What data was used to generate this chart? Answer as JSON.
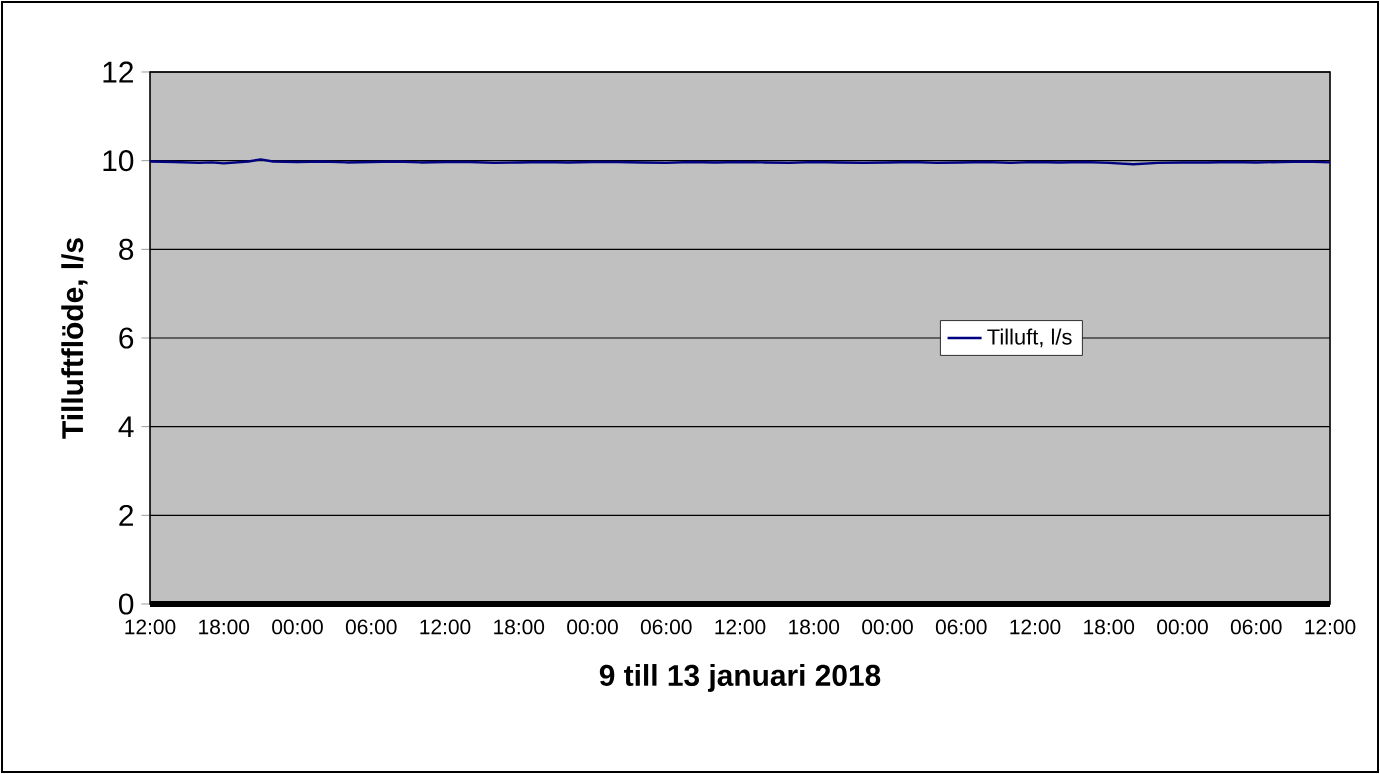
{
  "chart_data": {
    "type": "line",
    "xlabel": "9 till 13 januari 2018",
    "ylabel": "Tilluftflöde, l/s",
    "xlim": [
      "2018-01-09T12:00",
      "2018-01-13T12:00"
    ],
    "ylim": [
      0,
      12
    ],
    "yticks": [
      0,
      2,
      4,
      6,
      8,
      10,
      12
    ],
    "xticks": [
      {
        "value": "2018-01-09T12:00",
        "label": "12:00"
      },
      {
        "value": "2018-01-09T18:00",
        "label": "18:00"
      },
      {
        "value": "2018-01-10T00:00",
        "label": "00:00"
      },
      {
        "value": "2018-01-10T06:00",
        "label": "06:00"
      },
      {
        "value": "2018-01-10T12:00",
        "label": "12:00"
      },
      {
        "value": "2018-01-10T18:00",
        "label": "18:00"
      },
      {
        "value": "2018-01-11T00:00",
        "label": "00:00"
      },
      {
        "value": "2018-01-11T06:00",
        "label": "06:00"
      },
      {
        "value": "2018-01-11T12:00",
        "label": "12:00"
      },
      {
        "value": "2018-01-11T18:00",
        "label": "18:00"
      },
      {
        "value": "2018-01-12T00:00",
        "label": "00:00"
      },
      {
        "value": "2018-01-12T06:00",
        "label": "06:00"
      },
      {
        "value": "2018-01-12T12:00",
        "label": "12:00"
      },
      {
        "value": "2018-01-12T18:00",
        "label": "18:00"
      },
      {
        "value": "2018-01-13T00:00",
        "label": "00:00"
      },
      {
        "value": "2018-01-13T06:00",
        "label": "06:00"
      },
      {
        "value": "2018-01-13T12:00",
        "label": "12:00"
      }
    ],
    "grid": "y",
    "legend": "right",
    "marker": "none",
    "line_style": "solid",
    "series": [
      {
        "name": "Tilluft, l/s",
        "color": "#000080",
        "x": [
          "2018-01-09T12:00",
          "2018-01-09T14:00",
          "2018-01-09T16:00",
          "2018-01-09T17:00",
          "2018-01-09T18:00",
          "2018-01-09T20:00",
          "2018-01-09T21:00",
          "2018-01-09T22:00",
          "2018-01-10T00:00",
          "2018-01-10T02:00",
          "2018-01-10T04:00",
          "2018-01-10T06:00",
          "2018-01-10T08:00",
          "2018-01-10T10:00",
          "2018-01-10T12:00",
          "2018-01-10T14:00",
          "2018-01-10T16:00",
          "2018-01-10T18:00",
          "2018-01-10T20:00",
          "2018-01-10T22:00",
          "2018-01-11T00:00",
          "2018-01-11T02:00",
          "2018-01-11T04:00",
          "2018-01-11T06:00",
          "2018-01-11T08:00",
          "2018-01-11T10:00",
          "2018-01-11T12:00",
          "2018-01-11T14:00",
          "2018-01-11T16:00",
          "2018-01-11T18:00",
          "2018-01-11T20:00",
          "2018-01-11T22:00",
          "2018-01-12T00:00",
          "2018-01-12T02:00",
          "2018-01-12T04:00",
          "2018-01-12T06:00",
          "2018-01-12T08:00",
          "2018-01-12T10:00",
          "2018-01-12T12:00",
          "2018-01-12T14:00",
          "2018-01-12T16:00",
          "2018-01-12T18:00",
          "2018-01-12T20:00",
          "2018-01-12T22:00",
          "2018-01-13T00:00",
          "2018-01-13T02:00",
          "2018-01-13T04:00",
          "2018-01-13T06:00",
          "2018-01-13T08:00",
          "2018-01-13T10:00",
          "2018-01-13T12:00"
        ],
        "values": [
          9.98,
          9.97,
          9.95,
          9.96,
          9.94,
          9.98,
          10.03,
          9.98,
          9.97,
          9.98,
          9.96,
          9.97,
          9.98,
          9.96,
          9.97,
          9.97,
          9.95,
          9.96,
          9.97,
          9.96,
          9.97,
          9.97,
          9.96,
          9.95,
          9.97,
          9.96,
          9.97,
          9.96,
          9.95,
          9.97,
          9.96,
          9.95,
          9.96,
          9.97,
          9.95,
          9.96,
          9.97,
          9.95,
          9.97,
          9.96,
          9.97,
          9.95,
          9.92,
          9.95,
          9.96,
          9.96,
          9.97,
          9.96,
          9.97,
          9.98,
          9.96
        ]
      }
    ]
  }
}
